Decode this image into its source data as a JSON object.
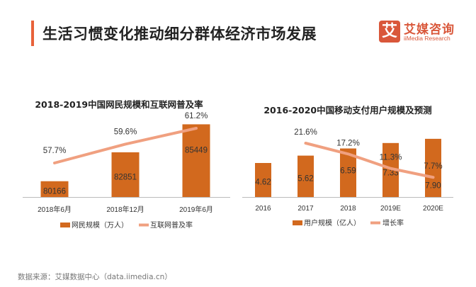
{
  "header": {
    "title": "生活习惯变化推动细分群体经济市场发展",
    "accent_color": "#e8623a"
  },
  "logo": {
    "mark": "艾",
    "name_cn": "艾媒咨询",
    "name_en": "iiMedia Research"
  },
  "footer": {
    "source": "数据来源：艾媒数据中心（data.iimedia.cn）"
  },
  "chart_data": [
    {
      "type": "bar",
      "title": "2018-2019中国网民规模和互联网普及率",
      "categories": [
        "2018年6月",
        "2018年12月",
        "2019年6月"
      ],
      "series": [
        {
          "name": "网民规模（万人）",
          "kind": "bar",
          "color": "#d2691e",
          "values": [
            80166,
            82851,
            85449
          ],
          "labels": [
            "80166",
            "82851",
            "85449"
          ]
        },
        {
          "name": "互联网普及率",
          "kind": "line",
          "color": "#f0a080",
          "values": [
            57.7,
            59.6,
            61.2
          ],
          "labels": [
            "57.7%",
            "59.6%",
            "61.2%"
          ]
        }
      ],
      "xlabel": "",
      "ylabel": "",
      "legend": "bottom",
      "grid": false
    },
    {
      "type": "bar",
      "title": "2016-2020中国移动支付用户规模及预测",
      "categories": [
        "2016",
        "2017",
        "2018",
        "2019E",
        "2020E"
      ],
      "series": [
        {
          "name": "用户规模（亿人）",
          "kind": "bar",
          "color": "#d2691e",
          "values": [
            4.62,
            5.62,
            6.59,
            7.33,
            7.9
          ],
          "labels": [
            "4.62",
            "5.62",
            "6.59",
            "7.33",
            "7.90"
          ]
        },
        {
          "name": "增长率",
          "kind": "line",
          "color": "#f0a080",
          "values": [
            null,
            21.6,
            17.2,
            11.3,
            7.7
          ],
          "labels": [
            "",
            "21.6%",
            "17.2%",
            "11.3%",
            "7.7%"
          ]
        }
      ],
      "xlabel": "",
      "ylabel": "",
      "legend": "bottom",
      "grid": false
    }
  ]
}
